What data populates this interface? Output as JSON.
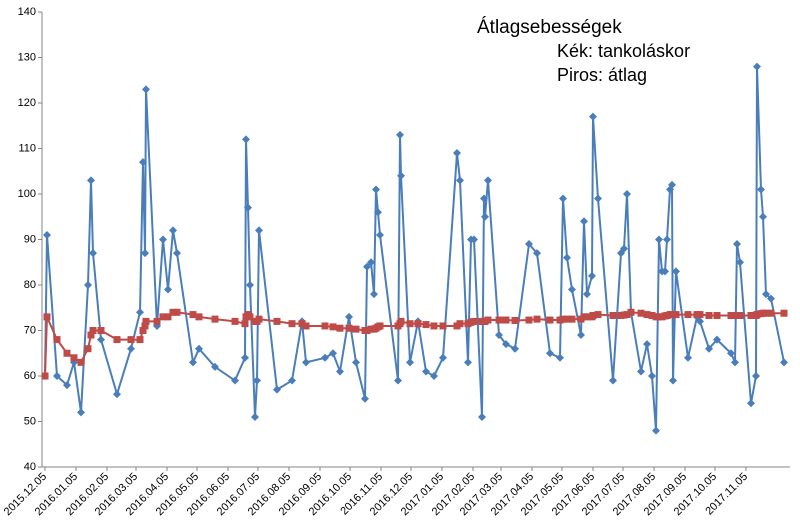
{
  "chart_data": {
    "type": "line",
    "title": "Átlagsebességek",
    "annotations": [
      "Kék: tankoláskor",
      "Piros: átlag"
    ],
    "x": [
      "2015.12.05",
      "2015.12.07",
      "2015.12.17",
      "2015.12.27",
      "2016.01.03",
      "2016.01.10",
      "2016.01.17",
      "2016.01.20",
      "2016.01.22",
      "2016.01.30",
      "2016.02.15",
      "2016.02.29",
      "2016.03.09",
      "2016.03.12",
      "2016.03.14",
      "2016.03.15",
      "2016.03.26",
      "2016.04.01",
      "2016.04.06",
      "2016.04.11",
      "2016.04.15",
      "2016.05.01",
      "2016.05.07",
      "2016.05.23",
      "2016.06.12",
      "2016.06.22",
      "2016.06.23",
      "2016.06.25",
      "2016.06.27",
      "2016.07.02",
      "2016.07.04",
      "2016.07.06",
      "2016.07.24",
      "2016.08.08",
      "2016.08.18",
      "2016.08.22",
      "2016.09.10",
      "2016.09.18",
      "2016.09.25",
      "2016.10.04",
      "2016.10.11",
      "2016.10.20",
      "2016.10.22",
      "2016.10.26",
      "2016.10.29",
      "2016.10.31",
      "2016.11.02",
      "2016.11.04",
      "2016.11.22",
      "2016.11.24",
      "2016.11.25",
      "2016.12.04",
      "2016.12.12",
      "2016.12.20",
      "2016.12.28",
      "2017.01.06",
      "2017.01.20",
      "2017.01.23",
      "2017.01.31",
      "2017.02.03",
      "2017.02.06",
      "2017.02.14",
      "2017.02.16",
      "2017.02.17",
      "2017.02.20",
      "2017.03.03",
      "2017.03.10",
      "2017.03.19",
      "2017.04.02",
      "2017.04.10",
      "2017.04.23",
      "2017.05.03",
      "2017.05.06",
      "2017.05.10",
      "2017.05.15",
      "2017.05.24",
      "2017.05.27",
      "2017.05.30",
      "2017.06.04",
      "2017.06.05",
      "2017.06.10",
      "2017.06.25",
      "2017.07.03",
      "2017.07.06",
      "2017.07.09",
      "2017.07.13",
      "2017.07.23",
      "2017.07.29",
      "2017.08.03",
      "2017.08.07",
      "2017.08.10",
      "2017.08.13",
      "2017.08.16",
      "2017.08.18",
      "2017.08.21",
      "2017.08.23",
      "2017.08.24",
      "2017.08.27",
      "2017.09.08",
      "2017.09.17",
      "2017.09.20",
      "2017.09.29",
      "2017.10.07",
      "2017.10.21",
      "2017.10.25",
      "2017.10.27",
      "2017.10.30",
      "2017.11.10",
      "2017.11.15",
      "2017.11.16",
      "2017.11.20",
      "2017.11.22",
      "2017.11.25",
      "2017.11.30",
      "2017.12.13"
    ],
    "series": [
      {
        "color": "#4a7ebb",
        "marker": "diamond",
        "values": [
          60,
          91,
          60,
          58,
          63,
          52,
          80,
          103,
          87,
          68,
          56,
          66,
          74,
          107,
          87,
          123,
          71,
          90,
          79,
          92,
          87,
          63,
          66,
          62,
          59,
          64,
          112,
          97,
          80,
          51,
          59,
          92,
          57,
          59,
          72,
          63,
          64,
          65,
          61,
          73,
          63,
          55,
          84,
          85,
          78,
          101,
          96,
          91,
          59,
          113,
          104,
          63,
          72,
          61,
          60,
          64,
          109,
          103,
          63,
          90,
          90,
          51,
          99,
          95,
          103,
          69,
          67,
          66,
          89,
          87,
          65,
          64,
          99,
          86,
          79,
          69,
          94,
          78,
          82,
          117,
          99,
          59,
          87,
          88,
          100,
          74,
          61,
          67,
          60,
          48,
          90,
          83,
          83,
          90,
          101,
          102,
          59,
          83,
          64,
          73,
          72,
          66,
          68,
          65,
          63,
          89,
          85,
          54,
          60,
          128,
          101,
          95,
          78,
          77,
          63
        ]
      },
      {
        "color": "#be4b48",
        "marker": "square",
        "values": [
          60,
          73,
          68,
          65,
          64,
          63,
          66,
          69,
          70,
          70,
          68,
          68,
          68,
          70,
          71,
          72,
          72,
          73,
          73,
          74,
          74,
          73.5,
          73,
          72.5,
          72,
          71.5,
          73,
          73.5,
          73,
          72,
          72,
          72.5,
          72,
          71.5,
          71.5,
          71,
          71,
          70.8,
          70.5,
          70.5,
          70.3,
          70,
          70,
          70.3,
          70.3,
          70.5,
          70.8,
          71,
          71,
          71.5,
          72,
          71.5,
          71.5,
          71.3,
          71,
          71,
          71,
          71.5,
          71.5,
          71.8,
          72,
          72,
          72,
          72,
          72.3,
          72.3,
          72.3,
          72.2,
          72.3,
          72.5,
          72.3,
          72.3,
          72.5,
          72.5,
          72.5,
          72.5,
          73,
          73,
          73,
          73.3,
          73.5,
          73.3,
          73.3,
          73.4,
          73.5,
          74,
          73.8,
          73.5,
          73.3,
          73,
          73,
          73,
          73.2,
          73.3,
          73.5,
          73.5,
          73.5,
          73.5,
          73.5,
          73.5,
          73.5,
          73.3,
          73.3,
          73.3,
          73.3,
          73.3,
          73.3,
          73.3,
          73.3,
          73.5,
          73.7,
          73.8,
          73.8,
          73.8,
          73.8
        ]
      }
    ],
    "xlim": [
      "2015.12.02",
      "2017.12.19"
    ],
    "xticks": [
      "2015.12.05",
      "2016.01.05",
      "2016.02.05",
      "2016.03.05",
      "2016.04.05",
      "2016.05.05",
      "2016.06.05",
      "2016.07.05",
      "2016.08.05",
      "2016.09.05",
      "2016.10.05",
      "2016.11.05",
      "2016.12.05",
      "2017.01.05",
      "2017.02.05",
      "2017.03.05",
      "2017.04.05",
      "2017.05.05",
      "2017.06.05",
      "2017.07.05",
      "2017.08.05",
      "2017.09.05",
      "2017.10.05",
      "2017.11.05"
    ],
    "ylim": [
      40,
      140
    ],
    "yticks": [
      40,
      50,
      60,
      70,
      80,
      90,
      100,
      110,
      120,
      130,
      140
    ],
    "grid": false
  }
}
